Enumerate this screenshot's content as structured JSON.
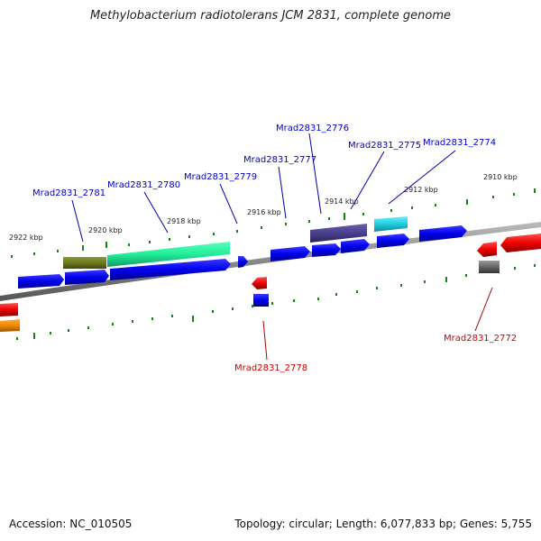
{
  "title": "Methylobacterium radiotolerans JCM 2831, complete genome",
  "footer": {
    "accession": "Accession: NC_010505",
    "summary": "Topology: circular; Length: 6,077,833 bp; Genes: 5,755"
  },
  "ticks": {
    "labels": [
      "2922 kbp",
      "2920 kbp",
      "2918 kbp",
      "2916 kbp",
      "2914 kbp",
      "2912 kbp",
      "2910 kbp"
    ]
  },
  "genes": [
    {
      "id": "Mrad2831_2781",
      "strand": "+",
      "color": "#0000cc"
    },
    {
      "id": "Mrad2831_2780",
      "strand": "+",
      "color": "#0000cc"
    },
    {
      "id": "Mrad2831_2779",
      "strand": "+",
      "color": "#0000cc"
    },
    {
      "id": "Mrad2831_2777",
      "strand": "+",
      "color": "#0000cc"
    },
    {
      "id": "Mrad2831_2776",
      "strand": "+",
      "color": "#0000cc"
    },
    {
      "id": "Mrad2831_2775",
      "strand": "+",
      "color": "#0000cc"
    },
    {
      "id": "Mrad2831_2774",
      "strand": "+",
      "color": "#0000cc"
    },
    {
      "id": "Mrad2831_2778",
      "strand": "-",
      "color": "#cc0000"
    },
    {
      "id": "Mrad2831_2772",
      "strand": "-",
      "color": "#cc0000"
    }
  ],
  "colors": {
    "forward_gene": "#0000ee",
    "reverse_gene": "#ee0000",
    "backbone": "#888888",
    "tick": "#118811",
    "olive": "#6b7a1e",
    "mint": "#22ee99",
    "purple": "#4a3f8c",
    "cyan": "#22ccdd",
    "dark_gray": "#666666",
    "orange": "#ee8800"
  }
}
